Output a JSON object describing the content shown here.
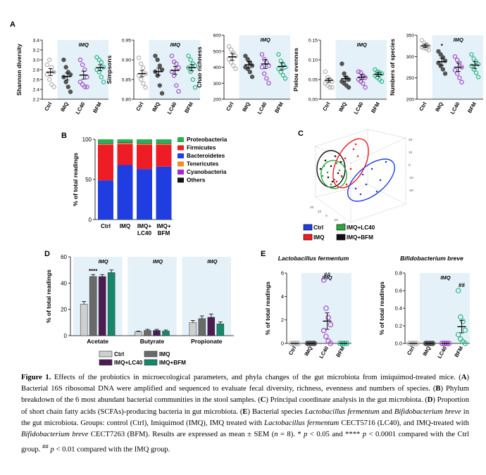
{
  "panel_labels": {
    "A": "A",
    "B": "B",
    "C": "C",
    "D": "D",
    "E": "E"
  },
  "shade_label": "IMQ",
  "chart_data": [
    {
      "type": "scatter",
      "panel": "A",
      "ylabel": "Shannon diversity",
      "ylim": [
        2.2,
        3.4
      ],
      "yticks": [
        "2.2",
        "2.4",
        "2.6",
        "2.8",
        "3.0",
        "3.2",
        "3.4"
      ],
      "categories": [
        "Ctrl",
        "IMQ",
        "LC40",
        "BFM"
      ],
      "means": [
        2.75,
        2.66,
        2.69,
        2.84
      ],
      "sem": [
        0.07,
        0.07,
        0.08,
        0.06
      ],
      "points": [
        [
          2.9,
          3.0,
          2.85,
          2.75,
          2.7,
          2.6,
          2.5,
          2.45
        ],
        [
          3.0,
          2.85,
          2.75,
          2.7,
          2.65,
          2.55,
          2.45,
          2.35
        ],
        [
          3.0,
          2.9,
          2.8,
          2.65,
          2.55,
          2.5,
          2.45,
          2.45
        ],
        [
          3.05,
          3.0,
          2.95,
          2.85,
          2.8,
          2.75,
          2.65,
          2.55
        ]
      ],
      "annotations": []
    },
    {
      "type": "scatter",
      "panel": "A",
      "ylabel": "Simpsons",
      "ylim": [
        0.8,
        0.95
      ],
      "yticks": [
        "0.80",
        "0.85",
        "0.90",
        "0.95"
      ],
      "categories": [
        "Ctrl",
        "IMQ",
        "LC40",
        "BFM"
      ],
      "means": [
        0.865,
        0.87,
        0.873,
        0.88
      ],
      "sem": [
        0.008,
        0.009,
        0.01,
        0.008
      ],
      "points": [
        [
          0.905,
          0.89,
          0.88,
          0.865,
          0.86,
          0.85,
          0.84,
          0.83
        ],
        [
          0.91,
          0.9,
          0.885,
          0.875,
          0.87,
          0.86,
          0.835,
          0.815
        ],
        [
          0.91,
          0.895,
          0.89,
          0.88,
          0.87,
          0.86,
          0.835,
          0.82
        ],
        [
          0.91,
          0.9,
          0.89,
          0.885,
          0.88,
          0.87,
          0.85,
          0.83
        ]
      ],
      "annotations": []
    },
    {
      "type": "scatter",
      "panel": "A",
      "ylabel": "Chao richness",
      "ylim": [
        200,
        600
      ],
      "yticks": [
        "200",
        "300",
        "400",
        "500",
        "600"
      ],
      "categories": [
        "Ctrl",
        "IMQ",
        "LC40",
        "BFM"
      ],
      "means": [
        465,
        415,
        420,
        405
      ],
      "sem": [
        22,
        20,
        28,
        22
      ],
      "points": [
        [
          530,
          510,
          490,
          470,
          450,
          430,
          410,
          390
        ],
        [
          470,
          450,
          430,
          410,
          400,
          390,
          370,
          340
        ],
        [
          480,
          450,
          430,
          410,
          400,
          360,
          330,
          300
        ],
        [
          480,
          440,
          420,
          400,
          390,
          370,
          350,
          330
        ]
      ],
      "annotations": []
    },
    {
      "type": "scatter",
      "panel": "A",
      "ylabel": "Pielou evennes",
      "ylim": [
        0.0,
        0.15
      ],
      "yticks": [
        "0.00",
        "0.05",
        "0.10",
        "0.15"
      ],
      "categories": [
        "Ctrl",
        "IMQ",
        "LC40",
        "BFM"
      ],
      "means": [
        0.048,
        0.052,
        0.056,
        0.063
      ],
      "sem": [
        0.005,
        0.006,
        0.006,
        0.005
      ],
      "points": [
        [
          0.07,
          0.055,
          0.05,
          0.045,
          0.04,
          0.035,
          0.03,
          0.03
        ],
        [
          0.09,
          0.065,
          0.055,
          0.05,
          0.045,
          0.04,
          0.035,
          0.03
        ],
        [
          0.07,
          0.068,
          0.06,
          0.055,
          0.05,
          0.045,
          0.04,
          0.03
        ],
        [
          0.075,
          0.07,
          0.068,
          0.065,
          0.06,
          0.055,
          0.05,
          0.045
        ]
      ],
      "annotations": []
    },
    {
      "type": "scatter",
      "panel": "A",
      "ylabel": "Numbers of species",
      "ylim": [
        200,
        350
      ],
      "yticks": [
        "200",
        "250",
        "300",
        "350"
      ],
      "categories": [
        "Ctrl",
        "IMQ",
        "LC40",
        "BFM"
      ],
      "means": [
        325,
        288,
        275,
        280
      ],
      "sem": [
        4,
        8,
        10,
        8
      ],
      "points": [
        [
          338,
          332,
          328,
          325,
          322,
          320,
          318,
          315
        ],
        [
          312,
          305,
          298,
          290,
          285,
          278,
          270,
          260
        ],
        [
          300,
          292,
          285,
          275,
          268,
          260,
          250,
          240
        ],
        [
          305,
          295,
          288,
          282,
          278,
          270,
          262,
          252
        ]
      ],
      "annotations": [
        {
          "group": "IMQ",
          "text": "*"
        }
      ]
    },
    {
      "type": "bar",
      "stacked": true,
      "panel": "B",
      "ylabel": "% of total readings",
      "ylim": [
        0,
        100
      ],
      "yticks": [
        "0",
        "50",
        "100"
      ],
      "categories": [
        "Ctrl",
        "IMQ",
        "IMQ+\nLC40",
        "IMQ+\nBFM"
      ],
      "series": [
        {
          "name": "Bacteroidetes",
          "values": [
            49,
            68,
            63,
            66
          ]
        },
        {
          "name": "Firmicutes",
          "values": [
            44,
            26,
            30,
            27
          ]
        },
        {
          "name": "Tenericutes",
          "values": [
            1,
            1,
            1,
            1
          ]
        },
        {
          "name": "Cyanobacteria",
          "values": [
            0.5,
            0.5,
            0.5,
            0.5
          ]
        },
        {
          "name": "Others",
          "values": [
            0.5,
            0.5,
            0.5,
            0.5
          ]
        },
        {
          "name": "Proteobacteria",
          "values": [
            5,
            4,
            5,
            5
          ]
        }
      ],
      "legend": [
        "Proteobacteria",
        "Firmicutes",
        "Bacteroidetes",
        "Tenericutes",
        "Cyanobacteria",
        "Others"
      ]
    },
    {
      "type": "scatter",
      "panel": "C",
      "axis_ticks": [
        "20",
        "10",
        "0",
        "-10",
        "-20"
      ],
      "legend": [
        "Ctrl",
        "IMQ+LC40",
        "IMQ",
        "IMQ+BFM"
      ]
    },
    {
      "type": "bar",
      "panel": "D",
      "ylabel": "% of total readings",
      "ylim": [
        0,
        60
      ],
      "yticks": [
        "0",
        "20",
        "40",
        "60"
      ],
      "categories": [
        "Acetate",
        "Butyrate",
        "Propionate"
      ],
      "series": [
        {
          "name": "Ctrl",
          "values": [
            24,
            3,
            10
          ],
          "err": [
            2,
            0.5,
            1.5
          ]
        },
        {
          "name": "IMQ",
          "values": [
            45,
            4,
            13
          ],
          "err": [
            1.5,
            0.8,
            2
          ]
        },
        {
          "name": "IMQ+LC40",
          "values": [
            45,
            4,
            14
          ],
          "err": [
            1.5,
            0.8,
            2.5
          ]
        },
        {
          "name": "IMQ+BFM",
          "values": [
            48,
            3.5,
            9
          ],
          "err": [
            2,
            0.8,
            1.5
          ]
        }
      ],
      "annotations": [
        {
          "category": "Acetate",
          "text": "****"
        }
      ],
      "legend": [
        "Ctrl",
        "IMQ",
        "IMQ+LC40",
        "IMQ+BFM"
      ]
    },
    {
      "type": "scatter",
      "panel": "E",
      "title": "Lactobacillus fermentum",
      "ylabel": "% of total readings",
      "ylim": [
        0,
        6
      ],
      "yticks": [
        "0",
        "2",
        "4",
        "6"
      ],
      "categories": [
        "Ctrl",
        "IMQ",
        "LC40",
        "BFM"
      ],
      "means": [
        0,
        0,
        1.9,
        0
      ],
      "sem": [
        0,
        0,
        0.7,
        0
      ],
      "points": [
        [
          0,
          0,
          0,
          0,
          0,
          0,
          0,
          0
        ],
        [
          0,
          0,
          0,
          0,
          0,
          0,
          0,
          0
        ],
        [
          5.4,
          3.0,
          2.2,
          1.6,
          1.1,
          0.6,
          0.2,
          0.0
        ],
        [
          0,
          0,
          0,
          0,
          0,
          0,
          0,
          0
        ]
      ],
      "annotations": [
        {
          "group": "LC40",
          "text": "##"
        }
      ]
    },
    {
      "type": "scatter",
      "panel": "E",
      "title": "Bifidobacterium breve",
      "ylabel": "% of total readings",
      "ylim": [
        0,
        0.8
      ],
      "yticks": [
        "0.0",
        "0.2",
        "0.4",
        "0.6",
        "0.8"
      ],
      "categories": [
        "Ctrl",
        "IMQ",
        "LC40",
        "BFM"
      ],
      "means": [
        0,
        0,
        0,
        0.19
      ],
      "sem": [
        0,
        0,
        0,
        0.07
      ],
      "points": [
        [
          0,
          0,
          0,
          0,
          0,
          0,
          0,
          0
        ],
        [
          0,
          0,
          0,
          0,
          0,
          0,
          0,
          0
        ],
        [
          0,
          0,
          0,
          0,
          0,
          0,
          0,
          0
        ],
        [
          0.6,
          0.3,
          0.25,
          0.15,
          0.1,
          0.05,
          0.02,
          0.0
        ]
      ],
      "annotations": [
        {
          "group": "BFM",
          "text": "##"
        }
      ]
    }
  ],
  "colors": {
    "Ctrl": "#b0b0b0",
    "IMQ": "#555555",
    "LC40": "#a64ac9",
    "BFM": "#2ab583",
    "shade": "#e4f1f8",
    "Bacteroidetes": "#1f3de0",
    "Firmicutes": "#ee1c24",
    "Tenericutes": "#f58a1f",
    "Cyanobacteria": "#a328c8",
    "Others": "#111111",
    "Proteobacteria": "#23b34a",
    "D_Ctrl": "#cfcfcf",
    "D_IMQ": "#6a6a6a",
    "D_LC40": "#4a1c53",
    "D_BFM": "#13886b",
    "C_Ctrl": "#1f3de0",
    "C_IMQ": "#ee1c24",
    "C_LC40": "#2aa83c",
    "C_BFM": "#111111"
  },
  "caption": {
    "figure_label": "Figure 1.",
    "p1": " Effects of the probiotics in microecological parameters, and phyla changes of the gut microbiota from imiquimod-treated mice. (",
    "a": "A",
    "p2": ") Bacterial 16S ribosomal DNA were amplified and sequenced to evaluate fecal diversity, richness, evenness and numbers of species. (",
    "b": "B",
    "p3": ") Phylum breakdown of the 6 most abundant bacterial communities in the stool samples. (",
    "c": "C",
    "p4": ") Principal coordinate analysis in the gut microbiota. (",
    "d": "D",
    "p5": ") Proportion of short chain fatty acids (SCFAs)-producing bacteria in gut microbiota. (",
    "e": "E",
    "p6": ") Bacterial species ",
    "lf": "Lactobacillus fermentum",
    "p7": " and ",
    "bb": "Bifidobacterium breve",
    "p8": " in the gut microbiota. Groups: control (Ctrl), Imiquimod (IMQ), IMQ treated with ",
    "lf2": "Lactobacillus fermentum",
    "p9": " CECT5716 (LC40), and IMQ-treated with ",
    "bb2": "Bifidobacterium breve",
    "p10": " CECT7263 (BFM). Results are expressed as mean ± SEM (",
    "n": "n",
    "p11": " = 8). * ",
    "pa": "p",
    "p12": " < 0.05 and **** ",
    "pb": "p",
    "p13": " < 0.0001 compared with the Ctrl group. ",
    "hash": "##",
    "p14": " ",
    "pc": "p",
    "p15": " < 0.01 compared with the IMQ group."
  }
}
